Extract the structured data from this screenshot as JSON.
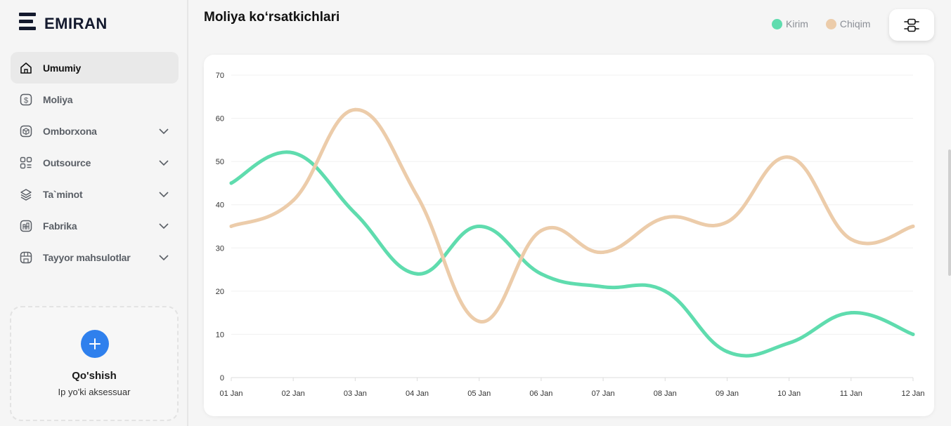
{
  "brand": {
    "name": "EMIRAN"
  },
  "sidebar": {
    "items": [
      {
        "label": "Umumiy",
        "icon": "home-icon",
        "active": true,
        "expandable": false
      },
      {
        "label": "Moliya",
        "icon": "dollar-icon",
        "active": false,
        "expandable": false
      },
      {
        "label": "Omborxona",
        "icon": "box-icon",
        "active": false,
        "expandable": true
      },
      {
        "label": "Outsource",
        "icon": "grid-icon",
        "active": false,
        "expandable": true
      },
      {
        "label": "Ta`minot",
        "icon": "layers-icon",
        "active": false,
        "expandable": true
      },
      {
        "label": "Fabrika",
        "icon": "factory-icon",
        "active": false,
        "expandable": true
      },
      {
        "label": "Tayyor mahsulotlar",
        "icon": "store-icon",
        "active": false,
        "expandable": true
      }
    ],
    "add_card": {
      "title": "Qo'shish",
      "subtitle": "Ip yo'ki aksessuar"
    }
  },
  "header": {
    "title": "Moliya koʻrsatkichlari"
  },
  "legend": [
    {
      "label": "Kirim",
      "color": "#5fdcae"
    },
    {
      "label": "Chiqim",
      "color": "#ecccaa"
    }
  ],
  "chart_data": {
    "type": "line",
    "categories": [
      "01 Jan",
      "02 Jan",
      "03 Jan",
      "04 Jan",
      "05 Jan",
      "06 Jan",
      "07 Jan",
      "08 Jan",
      "09 Jan",
      "10 Jan",
      "11 Jan",
      "12 Jan"
    ],
    "series": [
      {
        "name": "Kirim",
        "color": "#5fdcae",
        "values": [
          45,
          52,
          38,
          24,
          35,
          24,
          21,
          20,
          6,
          8,
          15,
          10
        ]
      },
      {
        "name": "Chiqim",
        "color": "#ecccaa",
        "values": [
          35,
          41,
          62,
          42,
          13,
          34,
          29,
          37,
          36,
          51,
          32,
          35
        ]
      }
    ],
    "yticks": [
      0,
      10,
      20,
      30,
      40,
      50,
      60,
      70
    ],
    "ylim": [
      0,
      70
    ],
    "grid": true,
    "smooth": true,
    "legend_position": "top-right"
  }
}
